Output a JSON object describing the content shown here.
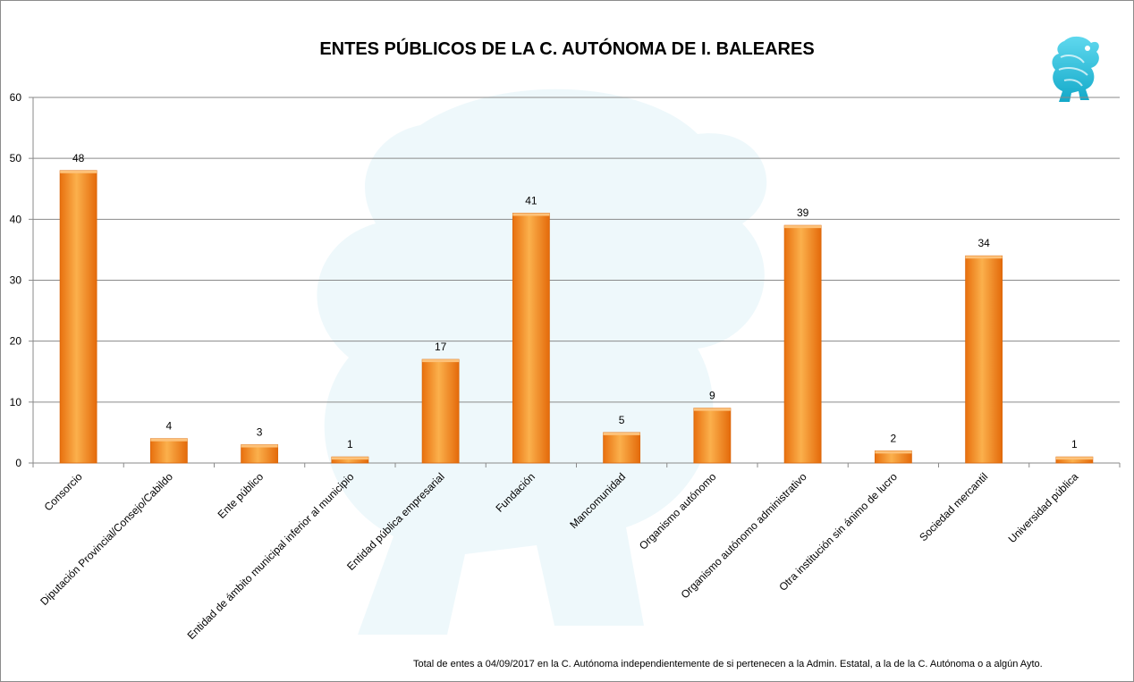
{
  "chart_data": {
    "type": "bar",
    "title": "ENTES PÚBLICOS DE LA C. AUTÓNOMA DE I. BALEARES",
    "xlabel": "",
    "ylabel": "",
    "ylim": [
      0,
      60
    ],
    "yticks": [
      "0",
      "10",
      "20",
      "30",
      "40",
      "50",
      "60"
    ],
    "grid": true,
    "legend": "none",
    "categories": [
      "Consorcio",
      "Diputación Provincial/Consejo/Cabildo",
      "Ente público",
      "Entidad de ámbito municipal inferior al municipio",
      "Entidad pública empresarial",
      "Fundación",
      "Mancomunidad",
      "Organismo autónomo",
      "Organismo autónomo administrativo",
      "Otra institución sin ánimo de lucro",
      "Sociedad mercantil",
      "Universidad pública"
    ],
    "values": [
      48,
      4,
      3,
      1,
      17,
      41,
      5,
      9,
      39,
      2,
      34,
      1
    ],
    "bar_color": "#f7901e",
    "footnote": "Total de entes a 04/09/2017 en la C. Autónoma independientemente de si pertenecen a la Admin. Estatal, a la de la C. Autónoma o a algún Ayto."
  },
  "logo": {
    "icon": "griffin-emblem-icon",
    "color": "#2ec4e0"
  }
}
